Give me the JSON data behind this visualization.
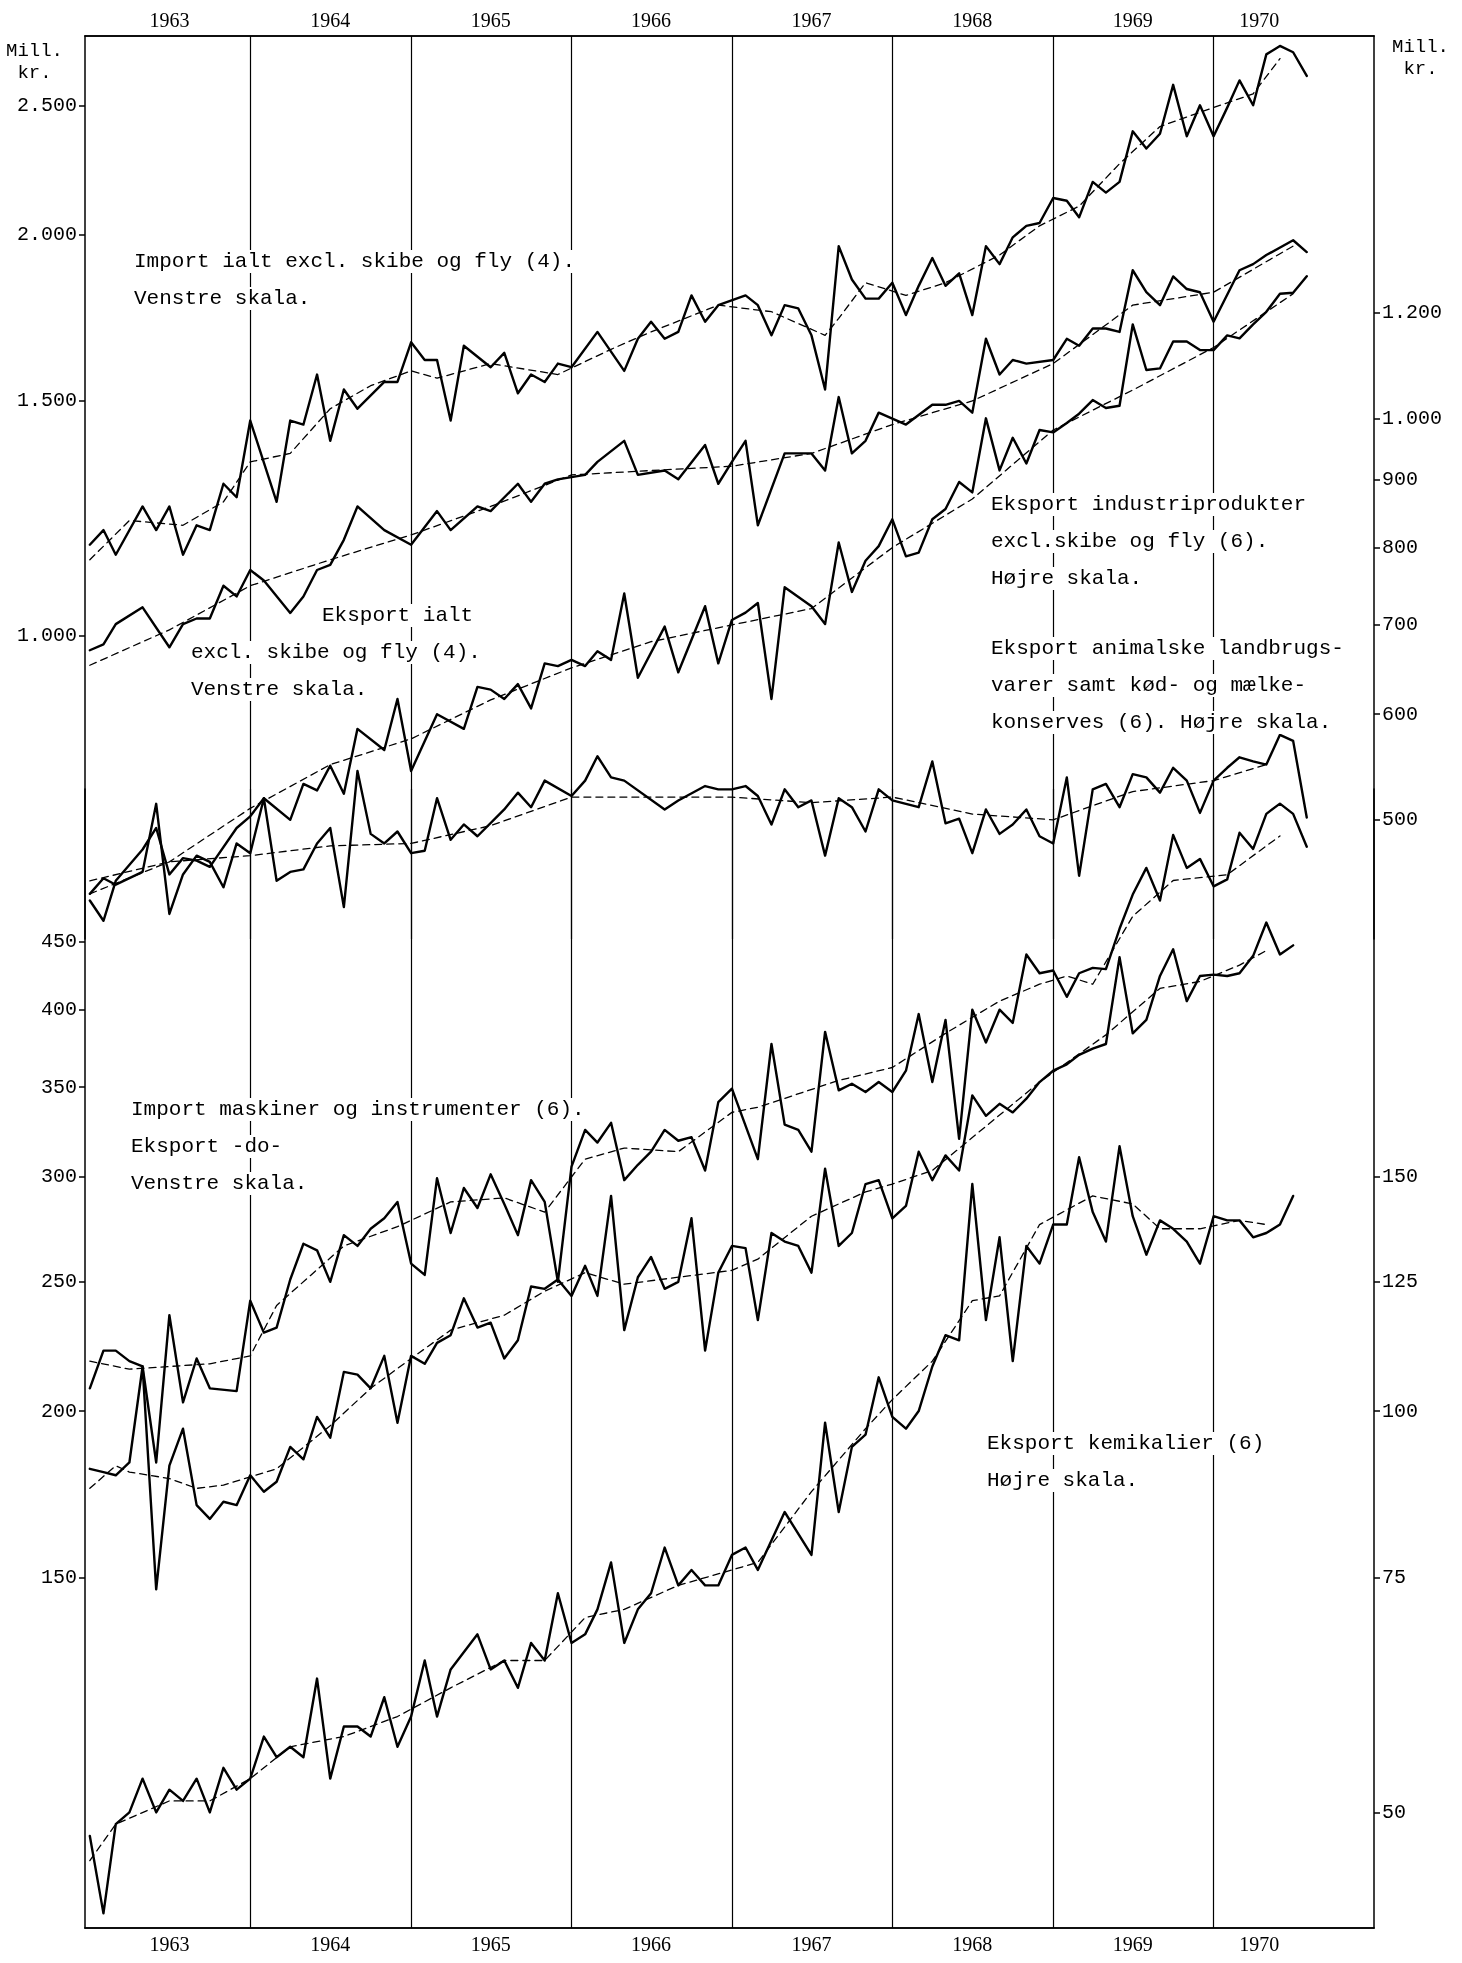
{
  "chart_data": [
    {
      "type": "line",
      "ylabel": "Mill. kr.",
      "log": true,
      "marker": "none",
      "xlim": [
        "1962-12-21",
        "1971-01-01"
      ],
      "xticks": [
        {
          "value": "1963-07",
          "label": "1963"
        },
        {
          "value": "1964-07",
          "label": "1964"
        },
        {
          "value": "1965-07",
          "label": "1965"
        },
        {
          "value": "1966-07",
          "label": "1966"
        },
        {
          "value": "1967-07",
          "label": "1967"
        },
        {
          "value": "1968-07",
          "label": "1968"
        },
        {
          "value": "1969-07",
          "label": "1969"
        },
        {
          "value": "1970-04-15",
          "label": "1970"
        }
      ],
      "ylim": [
        592,
        2818
      ],
      "yticks": [
        {
          "value": 1000,
          "label": "1.000"
        },
        {
          "value": 1500,
          "label": "1.500"
        },
        {
          "value": 2000,
          "label": "2.000"
        },
        {
          "value": 2500,
          "label": "2.500"
        }
      ],
      "ref_lines": [
        {
          "axis": "x",
          "value": "1964-01",
          "color": "#000000"
        },
        {
          "axis": "x",
          "value": "1965-01",
          "color": "#000000"
        },
        {
          "axis": "x",
          "value": "1966-01",
          "color": "#000000"
        },
        {
          "axis": "x",
          "value": "1967-01",
          "color": "#000000"
        },
        {
          "axis": "x",
          "value": "1968-01",
          "color": "#000000"
        },
        {
          "axis": "x",
          "value": "1969-01",
          "color": "#000000"
        },
        {
          "axis": "x",
          "value": "1970-01",
          "color": "#000000"
        }
      ],
      "annotations": [
        "Import ialt excl. skibe og fly (4).\nVenstre skala.",
        "Eksport ialt\nexcl. skibe og fly (4).\nVenstre skala."
      ],
      "series": [
        {
          "color": "#000000",
          "line_style": "solid",
          "x": [
            "1963-01",
            "1963-02",
            "1963-03",
            "1963-05",
            "1963-06",
            "1963-07",
            "1963-08",
            "1963-09",
            "1963-10",
            "1963-11",
            "1963-12",
            "1964-01",
            "1964-03",
            "1964-04",
            "1964-05",
            "1964-06",
            "1964-07",
            "1964-08",
            "1964-09",
            "1964-11",
            "1964-12",
            "1965-01",
            "1965-02",
            "1965-03",
            "1965-04",
            "1965-05",
            "1965-07",
            "1965-08",
            "1965-09",
            "1965-10",
            "1965-11",
            "1965-12",
            "1966-01",
            "1966-03",
            "1966-05",
            "1966-06",
            "1966-07",
            "1966-08",
            "1966-09",
            "1966-10",
            "1966-11",
            "1966-12",
            "1967-02",
            "1967-03",
            "1967-04",
            "1967-05",
            "1967-06",
            "1967-07",
            "1967-08",
            "1967-09",
            "1967-10",
            "1967-11",
            "1967-12",
            "1968-01",
            "1968-02",
            "1968-03",
            "1968-04",
            "1968-05",
            "1968-06",
            "1968-07",
            "1968-08",
            "1968-09",
            "1968-10",
            "1968-11",
            "1968-12",
            "1969-01",
            "1969-02",
            "1969-03",
            "1969-04",
            "1969-05",
            "1969-06",
            "1969-07",
            "1969-08",
            "1969-09",
            "1969-10",
            "1969-11",
            "1969-12",
            "1970-01",
            "1970-02",
            "1970-03",
            "1970-04",
            "1970-05",
            "1970-06",
            "1970-07",
            "1970-08"
          ],
          "values": [
            1170,
            1200,
            1150,
            1250,
            1200,
            1250,
            1150,
            1210,
            1200,
            1300,
            1270,
            1450,
            1260,
            1450,
            1440,
            1570,
            1400,
            1530,
            1480,
            1550,
            1550,
            1660,
            1610,
            1610,
            1450,
            1650,
            1590,
            1630,
            1520,
            1570,
            1550,
            1600,
            1590,
            1690,
            1580,
            1670,
            1720,
            1670,
            1690,
            1800,
            1720,
            1770,
            1800,
            1770,
            1680,
            1770,
            1760,
            1680,
            1530,
            1960,
            1850,
            1790,
            1790,
            1840,
            1740,
            1830,
            1920,
            1830,
            1870,
            1740,
            1960,
            1900,
            1990,
            2030,
            2040,
            2130,
            2120,
            2060,
            2190,
            2150,
            2190,
            2390,
            2320,
            2380,
            2590,
            2370,
            2500,
            2370,
            2490,
            2610,
            2500,
            2730,
            2770,
            2740,
            2630
          ]
        },
        {
          "color": "#000000",
          "line_style": "dashed",
          "x": [
            "1963-01",
            "1963-04",
            "1963-08",
            "1963-11",
            "1964-01",
            "1964-04",
            "1964-07",
            "1964-10",
            "1965-01",
            "1965-03",
            "1965-07",
            "1965-12",
            "1966-04",
            "1966-07",
            "1966-12",
            "1967-04",
            "1967-08",
            "1967-09",
            "1967-11",
            "1968-02",
            "1968-05",
            "1968-09",
            "1968-12",
            "1969-03",
            "1969-06",
            "1969-09",
            "1969-12",
            "1970-04",
            "1970-06"
          ],
          "values": [
            1140,
            1220,
            1210,
            1260,
            1350,
            1370,
            1480,
            1540,
            1580,
            1560,
            1600,
            1570,
            1640,
            1690,
            1770,
            1750,
            1680,
            1730,
            1840,
            1800,
            1840,
            1930,
            2030,
            2100,
            2260,
            2410,
            2470,
            2550,
            2710
          ]
        },
        {
          "color": "#000000",
          "line_style": "solid",
          "x": [
            "1963-01",
            "1963-02",
            "1963-03",
            "1963-05",
            "1963-07",
            "1963-08",
            "1963-09",
            "1963-10",
            "1963-11",
            "1963-12",
            "1964-01",
            "1964-02",
            "1964-04",
            "1964-05",
            "1964-06",
            "1964-07",
            "1964-08",
            "1964-09",
            "1964-11",
            "1965-01",
            "1965-03",
            "1965-04",
            "1965-06",
            "1965-07",
            "1965-09",
            "1965-10",
            "1965-11",
            "1965-12",
            "1966-02",
            "1966-03",
            "1966-05",
            "1966-06",
            "1966-08",
            "1966-09",
            "1966-11",
            "1966-12",
            "1967-01",
            "1967-02",
            "1967-03",
            "1967-05",
            "1967-07",
            "1967-08",
            "1967-09",
            "1967-10",
            "1967-11",
            "1967-12",
            "1968-02",
            "1968-04",
            "1968-05",
            "1968-06",
            "1968-07",
            "1968-08",
            "1968-09",
            "1968-10",
            "1968-11",
            "1969-01",
            "1969-02",
            "1969-03",
            "1969-04",
            "1969-05",
            "1969-06",
            "1969-07",
            "1969-08",
            "1969-09",
            "1969-10",
            "1969-11",
            "1969-12",
            "1970-01",
            "1970-03",
            "1970-04",
            "1970-05",
            "1970-07",
            "1970-08"
          ],
          "values": [
            975,
            985,
            1020,
            1050,
            980,
            1020,
            1030,
            1030,
            1090,
            1070,
            1120,
            1100,
            1040,
            1070,
            1120,
            1130,
            1180,
            1250,
            1200,
            1170,
            1240,
            1200,
            1250,
            1240,
            1300,
            1260,
            1300,
            1310,
            1320,
            1350,
            1400,
            1320,
            1330,
            1310,
            1390,
            1300,
            1350,
            1400,
            1210,
            1370,
            1370,
            1330,
            1510,
            1370,
            1400,
            1470,
            1440,
            1490,
            1490,
            1500,
            1470,
            1670,
            1570,
            1610,
            1600,
            1610,
            1670,
            1650,
            1700,
            1700,
            1690,
            1880,
            1810,
            1770,
            1860,
            1820,
            1810,
            1720,
            1880,
            1900,
            1930,
            1980,
            1940
          ]
        },
        {
          "color": "#000000",
          "line_style": "dashed",
          "x": [
            "1963-01",
            "1963-07",
            "1964-01",
            "1964-07",
            "1965-01",
            "1965-07",
            "1966-01",
            "1966-07",
            "1967-01",
            "1967-07",
            "1968-01",
            "1968-07",
            "1969-01",
            "1969-07",
            "1970-01",
            "1970-07"
          ],
          "values": [
            950,
            1010,
            1090,
            1140,
            1190,
            1250,
            1320,
            1330,
            1340,
            1370,
            1440,
            1500,
            1600,
            1770,
            1810,
            1960
          ]
        }
      ]
    },
    {
      "type": "line",
      "ylabel": "Mill. kr.",
      "log": true,
      "marker": "none",
      "tick_labels": "y",
      "xlim": [
        "1962-12-21",
        "1971-01-01"
      ],
      "ylim": [
        407,
        1935
      ],
      "yticks": [
        500,
        600,
        700,
        800,
        900,
        {
          "value": 1000,
          "label": "1.000"
        },
        {
          "value": 1200,
          "label": "1.200"
        }
      ],
      "annotations": [
        "Eksport industriprodukter\nexcl.skibe og fly (6).\nHøjre skala.",
        "Eksport animalske landbrugs-\nvarer samt kød- og mælke-\nkonserves (6). Højre skala."
      ],
      "series": [
        {
          "color": "#000000",
          "line_style": "solid",
          "x": [
            "1963-01",
            "1963-02",
            "1963-03",
            "1963-05",
            "1963-06",
            "1963-07",
            "1963-08",
            "1963-09",
            "1963-10",
            "1963-12",
            "1964-01",
            "1964-02",
            "1964-04",
            "1964-05",
            "1964-06",
            "1964-07",
            "1964-08",
            "1964-09",
            "1964-11",
            "1964-12",
            "1965-01",
            "1965-03",
            "1965-05",
            "1965-06",
            "1965-07",
            "1965-08",
            "1965-09",
            "1965-10",
            "1965-11",
            "1965-12",
            "1966-01",
            "1966-02",
            "1966-03",
            "1966-04",
            "1966-05",
            "1966-06",
            "1966-08",
            "1966-09",
            "1966-11",
            "1966-12",
            "1967-01",
            "1967-02",
            "1967-03",
            "1967-04",
            "1967-05",
            "1967-07",
            "1967-08",
            "1967-09",
            "1967-10",
            "1967-11",
            "1967-12",
            "1968-01",
            "1968-02",
            "1968-03",
            "1968-04",
            "1968-05",
            "1968-06",
            "1968-07",
            "1968-08",
            "1968-09",
            "1968-10",
            "1968-11",
            "1968-12",
            "1969-01",
            "1969-02",
            "1969-03",
            "1969-04",
            "1969-05",
            "1969-06",
            "1969-07",
            "1969-08",
            "1969-09",
            "1969-10",
            "1969-11",
            "1969-12",
            "1970-01",
            "1970-02",
            "1970-03",
            "1970-04",
            "1970-05",
            "1970-06",
            "1970-07",
            "1970-08"
          ],
          "values": [
            435,
            420,
            450,
            475,
            493,
            455,
            468,
            466,
            461,
            493,
            503,
            519,
            500,
            532,
            526,
            549,
            523,
            585,
            564,
            616,
            544,
            600,
            585,
            629,
            626,
            616,
            632,
            606,
            655,
            652,
            659,
            652,
            669,
            659,
            739,
            639,
            698,
            645,
            723,
            655,
            706,
            715,
            727,
            616,
            747,
            723,
            701,
            807,
            741,
            782,
            802,
            840,
            788,
            793,
            840,
            855,
            896,
            880,
            1000,
            914,
            967,
            925,
            980,
            976,
            992,
            1008,
            1032,
            1018,
            1022,
            1176,
            1087,
            1090,
            1142,
            1142,
            1125,
            1125,
            1154,
            1148,
            1176,
            1202,
            1240,
            1242,
            1278
          ]
        },
        {
          "color": "#000000",
          "line_style": "dashed",
          "x": [
            "1963-01",
            "1963-07",
            "1964-01",
            "1964-07",
            "1965-01",
            "1965-07",
            "1966-01",
            "1966-07",
            "1967-01",
            "1967-07",
            "1968-01",
            "1968-07",
            "1969-01",
            "1969-07",
            "1970-01",
            "1970-07"
          ],
          "values": [
            440,
            465,
            510,
            550,
            575,
            615,
            650,
            680,
            700,
            720,
            800,
            870,
            980,
            1050,
            1130,
            1240
          ]
        },
        {
          "color": "#000000",
          "line_style": "solid",
          "x": [
            "1963-01",
            "1963-02",
            "1963-03",
            "1963-05",
            "1963-06",
            "1963-07",
            "1963-08",
            "1963-09",
            "1963-10",
            "1963-11",
            "1963-12",
            "1964-01",
            "1964-02",
            "1964-03",
            "1964-04",
            "1964-05",
            "1964-06",
            "1964-07",
            "1964-08",
            "1964-09",
            "1964-10",
            "1964-11",
            "1964-12",
            "1965-01",
            "1965-02",
            "1965-03",
            "1965-04",
            "1965-05",
            "1965-06",
            "1965-08",
            "1965-09",
            "1965-10",
            "1965-11",
            "1966-01",
            "1966-02",
            "1966-03",
            "1966-04",
            "1966-05",
            "1966-08",
            "1966-09",
            "1966-11",
            "1966-12",
            "1967-01",
            "1967-02",
            "1967-03",
            "1967-04",
            "1967-05",
            "1967-06",
            "1967-07",
            "1967-08",
            "1967-09",
            "1967-10",
            "1967-11",
            "1967-12",
            "1968-01",
            "1968-02",
            "1968-03",
            "1968-04",
            "1968-05",
            "1968-06",
            "1968-07",
            "1968-08",
            "1968-09",
            "1968-10",
            "1968-11",
            "1968-12",
            "1969-01",
            "1969-02",
            "1969-03",
            "1969-04",
            "1969-05",
            "1969-06",
            "1969-07",
            "1969-08",
            "1969-09",
            "1969-10",
            "1969-11",
            "1969-12",
            "1970-01",
            "1970-02",
            "1970-03",
            "1970-04",
            "1970-05",
            "1970-06",
            "1970-07",
            "1970-08"
          ],
          "values": [
            440,
            452,
            447,
            457,
            514,
            425,
            455,
            470,
            465,
            445,
            480,
            472,
            519,
            450,
            457,
            459,
            480,
            493,
            430,
            544,
            488,
            480,
            490,
            472,
            474,
            519,
            483,
            496,
            486,
            509,
            524,
            511,
            535,
            521,
            535,
            558,
            538,
            535,
            509,
            517,
            530,
            527,
            527,
            530,
            521,
            496,
            527,
            511,
            517,
            470,
            519,
            511,
            490,
            527,
            517,
            514,
            511,
            553,
            497,
            501,
            472,
            509,
            488,
            496,
            509,
            486,
            480,
            538,
            454,
            527,
            532,
            511,
            541,
            538,
            524,
            547,
            535,
            506,
            535,
            547,
            557,
            553,
            550,
            579,
            573,
            502
          ]
        },
        {
          "color": "#000000",
          "line_style": "dashed",
          "x": [
            "1963-01",
            "1963-07",
            "1964-01",
            "1964-07",
            "1965-01",
            "1965-07",
            "1966-01",
            "1966-07",
            "1967-01",
            "1967-07",
            "1968-01",
            "1968-07",
            "1969-01",
            "1969-07",
            "1970-01",
            "1970-05"
          ],
          "values": [
            450,
            465,
            470,
            478,
            480,
            495,
            520,
            520,
            520,
            515,
            520,
            505,
            500,
            525,
            535,
            550
          ]
        }
      ]
    },
    {
      "type": "line",
      "log": true,
      "marker": "none",
      "xlim": [
        "1962-12-21",
        "1971-01-01"
      ],
      "xticks": [
        {
          "value": "1963-07",
          "label": "1963"
        },
        {
          "value": "1964-07",
          "label": "1964"
        },
        {
          "value": "1965-07",
          "label": "1965"
        },
        {
          "value": "1966-07",
          "label": "1966"
        },
        {
          "value": "1967-07",
          "label": "1967"
        },
        {
          "value": "1968-07",
          "label": "1968"
        },
        {
          "value": "1969-07",
          "label": "1969"
        },
        {
          "value": "1970-04-15",
          "label": "1970"
        }
      ],
      "ylim": [
        81.9,
        585.6
      ],
      "yticks": [
        150,
        200,
        250,
        300,
        350,
        400,
        450
      ],
      "ref_lines": [
        {
          "axis": "x",
          "value": "1964-01",
          "color": "#000000"
        },
        {
          "axis": "x",
          "value": "1965-01",
          "color": "#000000"
        },
        {
          "axis": "x",
          "value": "1966-01",
          "color": "#000000"
        },
        {
          "axis": "x",
          "value": "1967-01",
          "color": "#000000"
        },
        {
          "axis": "x",
          "value": "1968-01",
          "color": "#000000"
        },
        {
          "axis": "x",
          "value": "1969-01",
          "color": "#000000"
        },
        {
          "axis": "x",
          "value": "1970-01",
          "color": "#000000"
        }
      ],
      "annotations": [
        "Import maskiner og instrumenter (6).\nEksport -do-\nVenstre skala."
      ],
      "series": [
        {
          "color": "#000000",
          "line_style": "solid",
          "x": [
            "1963-01",
            "1963-02",
            "1963-03",
            "1963-04",
            "1963-05",
            "1963-06",
            "1963-07",
            "1963-08",
            "1963-09",
            "1963-10",
            "1963-12",
            "1964-01",
            "1964-02",
            "1964-03",
            "1964-04",
            "1964-05",
            "1964-06",
            "1964-07",
            "1964-08",
            "1964-09",
            "1964-10",
            "1964-11",
            "1964-12",
            "1965-01",
            "1965-02",
            "1965-03",
            "1965-04",
            "1965-05",
            "1965-06",
            "1965-07",
            "1965-08",
            "1965-09",
            "1965-10",
            "1965-11",
            "1965-12",
            "1966-01",
            "1966-02",
            "1966-03",
            "1966-04",
            "1966-05",
            "1966-06",
            "1966-07",
            "1966-08",
            "1966-09",
            "1966-10",
            "1966-11",
            "1966-12",
            "1967-01",
            "1967-03",
            "1967-04",
            "1967-05",
            "1967-06",
            "1967-07",
            "1967-08",
            "1967-09",
            "1967-10",
            "1967-11",
            "1967-12",
            "1968-01",
            "1968-02",
            "1968-03",
            "1968-04",
            "1968-05",
            "1968-06",
            "1968-07",
            "1968-08",
            "1968-09",
            "1968-10",
            "1968-11",
            "1968-12",
            "1969-01",
            "1969-02",
            "1969-03",
            "1969-04",
            "1969-05",
            "1969-06",
            "1969-07",
            "1969-08",
            "1969-09",
            "1969-10",
            "1969-11",
            "1969-12",
            "1970-01",
            "1970-02",
            "1970-03",
            "1970-04",
            "1970-05",
            "1970-06",
            "1970-07",
            "1970-08"
          ],
          "values": [
            208,
            222,
            222,
            218,
            216,
            183,
            236,
            203,
            219,
            208,
            207,
            242,
            229,
            231,
            251,
            267,
            264,
            250,
            271,
            266,
            274,
            279,
            287,
            258,
            253,
            299,
            272,
            294,
            284,
            301,
            286,
            271,
            298,
            287,
            250,
            305,
            325,
            318,
            329,
            298,
            306,
            313,
            325,
            319,
            321,
            303,
            341,
            349,
            309,
            377,
            328,
            325,
            313,
            385,
            348,
            352,
            347,
            353,
            347,
            360,
            397,
            353,
            393,
            320,
            400,
            378,
            400,
            391,
            440,
            426,
            428,
            409,
            426,
            430,
            429,
            460,
            488,
            511,
            483,
            541,
            511,
            519,
            495,
            501,
            543,
            528,
            561,
            571,
            561,
            530
          ]
        },
        {
          "color": "#000000",
          "line_style": "dashed",
          "x": [
            "1963-01",
            "1963-04",
            "1963-10",
            "1964-01",
            "1964-03",
            "1964-08",
            "1964-12",
            "1965-04",
            "1965-08",
            "1965-11",
            "1966-02",
            "1966-05",
            "1966-09",
            "1967-01",
            "1967-03",
            "1967-09",
            "1968-01",
            "1968-05",
            "1968-09",
            "1968-12",
            "1969-02",
            "1969-04",
            "1969-07",
            "1969-10",
            "1970-02",
            "1970-06"
          ],
          "values": [
            218,
            215,
            217,
            220,
            240,
            266,
            275,
            287,
            289,
            282,
            309,
            315,
            313,
            335,
            338,
            354,
            362,
            384,
            406,
            418,
            424,
            418,
            470,
            500,
            505,
            540
          ]
        },
        {
          "color": "#000000",
          "line_style": "solid",
          "x": [
            "1963-01",
            "1963-02",
            "1963-03",
            "1963-04",
            "1963-05",
            "1963-06",
            "1963-07",
            "1963-08",
            "1963-09",
            "1963-10",
            "1963-11",
            "1963-12",
            "1964-01",
            "1964-02",
            "1964-03",
            "1964-04",
            "1964-05",
            "1964-06",
            "1964-07",
            "1964-08",
            "1964-09",
            "1964-10",
            "1964-11",
            "1964-12",
            "1965-01",
            "1965-02",
            "1965-03",
            "1965-04",
            "1965-05",
            "1965-06",
            "1965-07",
            "1965-08",
            "1965-09",
            "1965-10",
            "1965-11",
            "1965-12",
            "1966-01",
            "1966-02",
            "1966-03",
            "1966-04",
            "1966-05",
            "1966-06",
            "1966-07",
            "1966-08",
            "1966-09",
            "1966-10",
            "1966-11",
            "1966-12",
            "1967-01",
            "1967-02",
            "1967-03",
            "1967-04",
            "1967-05",
            "1967-06",
            "1967-07",
            "1967-08",
            "1967-09",
            "1967-10",
            "1967-11",
            "1967-12",
            "1968-01",
            "1968-02",
            "1968-03",
            "1968-04",
            "1968-05",
            "1968-06",
            "1968-07",
            "1968-08",
            "1968-09",
            "1968-10",
            "1968-11",
            "1968-12",
            "1969-01",
            "1969-02",
            "1969-03",
            "1969-04",
            "1969-05",
            "1969-06",
            "1969-07",
            "1969-08",
            "1969-09",
            "1969-10",
            "1969-11",
            "1969-12",
            "1970-01",
            "1970-02",
            "1970-03",
            "1970-04",
            "1970-05",
            "1970-06",
            "1970-07"
          ],
          "values": [
            181,
            180,
            179,
            183,
            216,
            147,
            182,
            194,
            170,
            166,
            171,
            170,
            179,
            174,
            177,
            188,
            184,
            198,
            191,
            214,
            213,
            208,
            220,
            196,
            220,
            217,
            225,
            228,
            243,
            231,
            233,
            219,
            226,
            248,
            247,
            251,
            244,
            257,
            244,
            290,
            230,
            252,
            261,
            247,
            250,
            279,
            222,
            254,
            266,
            265,
            234,
            272,
            268,
            266,
            254,
            304,
            266,
            272,
            296,
            298,
            279,
            285,
            313,
            298,
            311,
            303,
            345,
            333,
            340,
            335,
            343,
            353,
            360,
            364,
            370,
            374,
            377,
            438,
            384,
            393,
            424,
            444,
            406,
            424,
            425,
            424,
            426,
            439,
            465,
            440,
            447
          ]
        },
        {
          "color": "#000000",
          "line_style": "dashed",
          "x": [
            "1963-01",
            "1963-03",
            "1963-04",
            "1963-07",
            "1963-09",
            "1963-11",
            "1964-03",
            "1964-07",
            "1964-10",
            "1965-01",
            "1965-04",
            "1965-08",
            "1965-11",
            "1966-02",
            "1966-05",
            "1966-09",
            "1967-01",
            "1967-03",
            "1967-07",
            "1967-11",
            "1968-01",
            "1968-04",
            "1968-12",
            "1969-05",
            "1969-09",
            "1969-12",
            "1970-03",
            "1970-05"
          ],
          "values": [
            175,
            182,
            180,
            178,
            175,
            176,
            181,
            195,
            208,
            219,
            230,
            236,
            246,
            254,
            249,
            252,
            255,
            260,
            280,
            292,
            296,
            303,
            353,
            383,
            415,
            420,
            432,
            443
          ]
        }
      ]
    },
    {
      "type": "line",
      "log": true,
      "marker": "none",
      "tick_labels": "y",
      "xlim": [
        "1962-12-21",
        "1971-01-01"
      ],
      "ylim": [
        40.95,
        292.8
      ],
      "yticks": [
        50,
        75,
        100,
        125,
        150
      ],
      "annotations": [
        "Eksport kemikalier (6)\nHøjre skala."
      ],
      "series": [
        {
          "color": "#000000",
          "line_style": "solid",
          "x": [
            "1963-01",
            "1963-02",
            "1963-03",
            "1963-04",
            "1963-05",
            "1963-06",
            "1963-07",
            "1963-08",
            "1963-09",
            "1963-10",
            "1963-11",
            "1963-12",
            "1964-01",
            "1964-02",
            "1964-03",
            "1964-04",
            "1964-05",
            "1964-06",
            "1964-07",
            "1964-08",
            "1964-09",
            "1964-10",
            "1964-11",
            "1964-12",
            "1965-01",
            "1965-02",
            "1965-03",
            "1965-04",
            "1965-06",
            "1965-07",
            "1965-08",
            "1965-09",
            "1965-10",
            "1965-11",
            "1965-12",
            "1966-01",
            "1966-02",
            "1966-03",
            "1966-04",
            "1966-05",
            "1966-06",
            "1966-07",
            "1966-08",
            "1966-09",
            "1966-10",
            "1966-11",
            "1966-12",
            "1967-01",
            "1967-02",
            "1967-03",
            "1967-05",
            "1967-07",
            "1967-08",
            "1967-09",
            "1967-10",
            "1967-11",
            "1967-12",
            "1968-01",
            "1968-02",
            "1968-03",
            "1968-04",
            "1968-05",
            "1968-06",
            "1968-07",
            "1968-08",
            "1968-09",
            "1968-10",
            "1968-11",
            "1968-12",
            "1969-01",
            "1969-02",
            "1969-03",
            "1969-04",
            "1969-05",
            "1969-06",
            "1969-07",
            "1969-08",
            "1969-09",
            "1969-10",
            "1969-11",
            "1969-12",
            "1970-01",
            "1970-02",
            "1970-03",
            "1970-04",
            "1970-05",
            "1970-06",
            "1970-07"
          ],
          "values": [
            48,
            42,
            49,
            50,
            53,
            50,
            52,
            51,
            53,
            50,
            54,
            52,
            53,
            57,
            55,
            56,
            55,
            63,
            53,
            58,
            58,
            57,
            61,
            56,
            59,
            65,
            59,
            64,
            68,
            64,
            65,
            62,
            67,
            65,
            73,
            67,
            68,
            71,
            77,
            67,
            71,
            73,
            79,
            74,
            76,
            74,
            74,
            78,
            79,
            76,
            84,
            78,
            98,
            84,
            94,
            96,
            106,
            99,
            97,
            100,
            108,
            114,
            113,
            148,
            117,
            135,
            109,
            133,
            129,
            138,
            138,
            155,
            141,
            134,
            158,
            140,
            131,
            139,
            137,
            134,
            129,
            140,
            139,
            139,
            135,
            136,
            138,
            145
          ]
        },
        {
          "color": "#000000",
          "line_style": "dashed",
          "x": [
            "1963-01",
            "1963-03",
            "1963-07",
            "1963-10",
            "1964-01",
            "1964-04",
            "1964-08",
            "1964-12",
            "1965-04",
            "1965-08",
            "1965-11",
            "1966-02",
            "1966-05",
            "1966-09",
            "1967-01",
            "1967-03",
            "1967-07",
            "1967-11",
            "1968-01",
            "1968-04",
            "1968-07",
            "1968-09",
            "1968-12",
            "1969-04",
            "1969-07",
            "1969-09",
            "1969-12",
            "1970-03",
            "1970-05"
          ],
          "values": [
            46,
            49,
            51,
            51,
            53,
            56,
            57,
            59,
            62,
            65,
            65,
            70,
            71,
            74,
            76,
            77,
            87,
            97,
            102,
            109,
            121,
            122,
            138,
            145,
            143,
            137,
            137,
            139,
            138
          ]
        }
      ]
    }
  ]
}
